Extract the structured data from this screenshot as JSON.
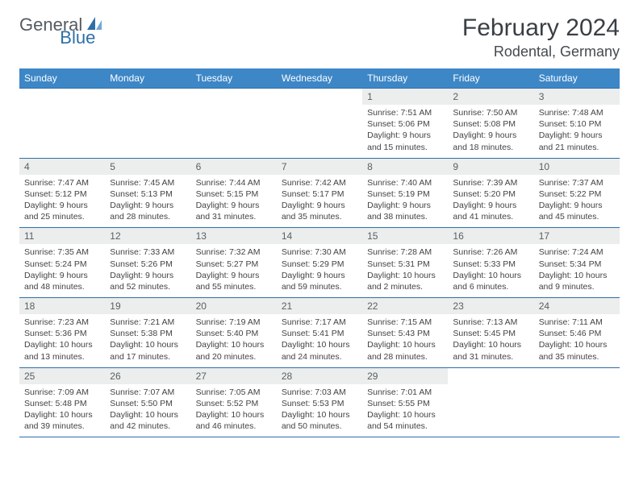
{
  "logo": {
    "text1": "General",
    "text2": "Blue"
  },
  "title": "February 2024",
  "location": "Rodental, Germany",
  "colors": {
    "header_bg": "#3d87c7",
    "header_text": "#ffffff",
    "rule": "#2f6fa8",
    "daynum_bg": "#eceded",
    "logo_gray": "#555b61",
    "logo_blue": "#2f6fa8"
  },
  "weekdays": [
    "Sunday",
    "Monday",
    "Tuesday",
    "Wednesday",
    "Thursday",
    "Friday",
    "Saturday"
  ],
  "weeks": [
    [
      {
        "n": "",
        "lines": []
      },
      {
        "n": "",
        "lines": []
      },
      {
        "n": "",
        "lines": []
      },
      {
        "n": "",
        "lines": []
      },
      {
        "n": "1",
        "lines": [
          "Sunrise: 7:51 AM",
          "Sunset: 5:06 PM",
          "Daylight: 9 hours",
          "and 15 minutes."
        ]
      },
      {
        "n": "2",
        "lines": [
          "Sunrise: 7:50 AM",
          "Sunset: 5:08 PM",
          "Daylight: 9 hours",
          "and 18 minutes."
        ]
      },
      {
        "n": "3",
        "lines": [
          "Sunrise: 7:48 AM",
          "Sunset: 5:10 PM",
          "Daylight: 9 hours",
          "and 21 minutes."
        ]
      }
    ],
    [
      {
        "n": "4",
        "lines": [
          "Sunrise: 7:47 AM",
          "Sunset: 5:12 PM",
          "Daylight: 9 hours",
          "and 25 minutes."
        ]
      },
      {
        "n": "5",
        "lines": [
          "Sunrise: 7:45 AM",
          "Sunset: 5:13 PM",
          "Daylight: 9 hours",
          "and 28 minutes."
        ]
      },
      {
        "n": "6",
        "lines": [
          "Sunrise: 7:44 AM",
          "Sunset: 5:15 PM",
          "Daylight: 9 hours",
          "and 31 minutes."
        ]
      },
      {
        "n": "7",
        "lines": [
          "Sunrise: 7:42 AM",
          "Sunset: 5:17 PM",
          "Daylight: 9 hours",
          "and 35 minutes."
        ]
      },
      {
        "n": "8",
        "lines": [
          "Sunrise: 7:40 AM",
          "Sunset: 5:19 PM",
          "Daylight: 9 hours",
          "and 38 minutes."
        ]
      },
      {
        "n": "9",
        "lines": [
          "Sunrise: 7:39 AM",
          "Sunset: 5:20 PM",
          "Daylight: 9 hours",
          "and 41 minutes."
        ]
      },
      {
        "n": "10",
        "lines": [
          "Sunrise: 7:37 AM",
          "Sunset: 5:22 PM",
          "Daylight: 9 hours",
          "and 45 minutes."
        ]
      }
    ],
    [
      {
        "n": "11",
        "lines": [
          "Sunrise: 7:35 AM",
          "Sunset: 5:24 PM",
          "Daylight: 9 hours",
          "and 48 minutes."
        ]
      },
      {
        "n": "12",
        "lines": [
          "Sunrise: 7:33 AM",
          "Sunset: 5:26 PM",
          "Daylight: 9 hours",
          "and 52 minutes."
        ]
      },
      {
        "n": "13",
        "lines": [
          "Sunrise: 7:32 AM",
          "Sunset: 5:27 PM",
          "Daylight: 9 hours",
          "and 55 minutes."
        ]
      },
      {
        "n": "14",
        "lines": [
          "Sunrise: 7:30 AM",
          "Sunset: 5:29 PM",
          "Daylight: 9 hours",
          "and 59 minutes."
        ]
      },
      {
        "n": "15",
        "lines": [
          "Sunrise: 7:28 AM",
          "Sunset: 5:31 PM",
          "Daylight: 10 hours",
          "and 2 minutes."
        ]
      },
      {
        "n": "16",
        "lines": [
          "Sunrise: 7:26 AM",
          "Sunset: 5:33 PM",
          "Daylight: 10 hours",
          "and 6 minutes."
        ]
      },
      {
        "n": "17",
        "lines": [
          "Sunrise: 7:24 AM",
          "Sunset: 5:34 PM",
          "Daylight: 10 hours",
          "and 9 minutes."
        ]
      }
    ],
    [
      {
        "n": "18",
        "lines": [
          "Sunrise: 7:23 AM",
          "Sunset: 5:36 PM",
          "Daylight: 10 hours",
          "and 13 minutes."
        ]
      },
      {
        "n": "19",
        "lines": [
          "Sunrise: 7:21 AM",
          "Sunset: 5:38 PM",
          "Daylight: 10 hours",
          "and 17 minutes."
        ]
      },
      {
        "n": "20",
        "lines": [
          "Sunrise: 7:19 AM",
          "Sunset: 5:40 PM",
          "Daylight: 10 hours",
          "and 20 minutes."
        ]
      },
      {
        "n": "21",
        "lines": [
          "Sunrise: 7:17 AM",
          "Sunset: 5:41 PM",
          "Daylight: 10 hours",
          "and 24 minutes."
        ]
      },
      {
        "n": "22",
        "lines": [
          "Sunrise: 7:15 AM",
          "Sunset: 5:43 PM",
          "Daylight: 10 hours",
          "and 28 minutes."
        ]
      },
      {
        "n": "23",
        "lines": [
          "Sunrise: 7:13 AM",
          "Sunset: 5:45 PM",
          "Daylight: 10 hours",
          "and 31 minutes."
        ]
      },
      {
        "n": "24",
        "lines": [
          "Sunrise: 7:11 AM",
          "Sunset: 5:46 PM",
          "Daylight: 10 hours",
          "and 35 minutes."
        ]
      }
    ],
    [
      {
        "n": "25",
        "lines": [
          "Sunrise: 7:09 AM",
          "Sunset: 5:48 PM",
          "Daylight: 10 hours",
          "and 39 minutes."
        ]
      },
      {
        "n": "26",
        "lines": [
          "Sunrise: 7:07 AM",
          "Sunset: 5:50 PM",
          "Daylight: 10 hours",
          "and 42 minutes."
        ]
      },
      {
        "n": "27",
        "lines": [
          "Sunrise: 7:05 AM",
          "Sunset: 5:52 PM",
          "Daylight: 10 hours",
          "and 46 minutes."
        ]
      },
      {
        "n": "28",
        "lines": [
          "Sunrise: 7:03 AM",
          "Sunset: 5:53 PM",
          "Daylight: 10 hours",
          "and 50 minutes."
        ]
      },
      {
        "n": "29",
        "lines": [
          "Sunrise: 7:01 AM",
          "Sunset: 5:55 PM",
          "Daylight: 10 hours",
          "and 54 minutes."
        ]
      },
      {
        "n": "",
        "lines": []
      },
      {
        "n": "",
        "lines": []
      }
    ]
  ]
}
